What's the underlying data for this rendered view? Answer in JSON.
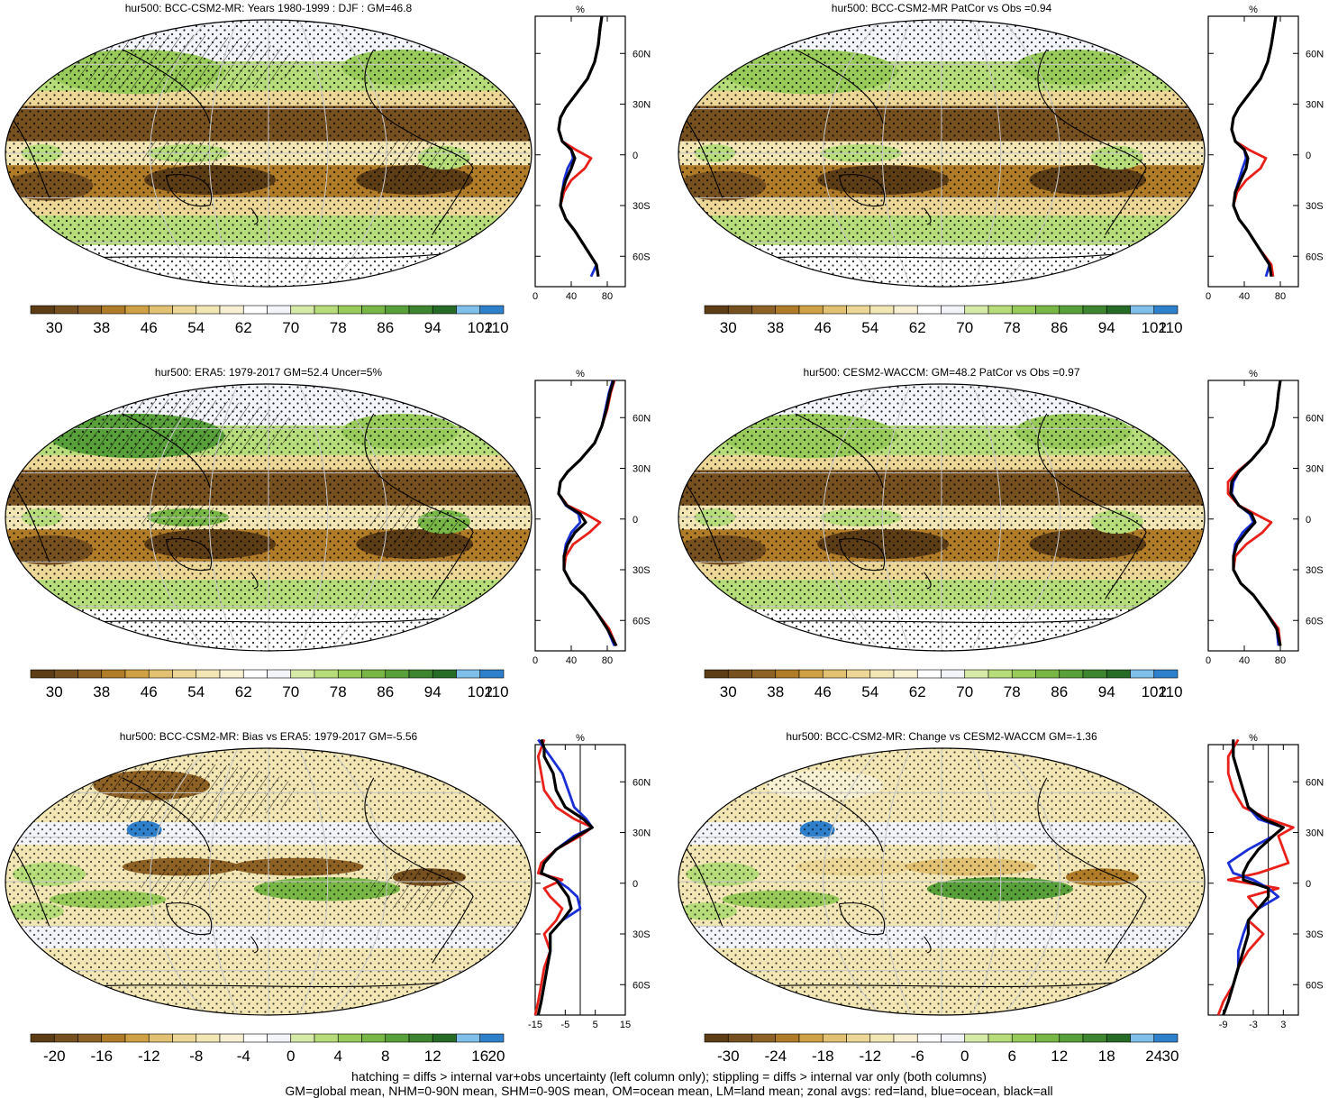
{
  "footer": {
    "line1": "hatching = diffs > internal var+obs uncertainty (left column only); stippling = diffs > internal var only (both columns)",
    "line2": "GM=global mean, NHM=0-90N mean, SHM=0-90S mean, OM=ocean mean, LM=land mean; zonal avgs: red=land, blue=ocean, black=all"
  },
  "colors": {
    "land": "#e8201a",
    "ocean": "#1a2fd6",
    "all": "#000000",
    "abs_scale": [
      "#5c3d16",
      "#77501f",
      "#8e6225",
      "#b07c28",
      "#cfa044",
      "#e2c272",
      "#ecd796",
      "#f2e6b4",
      "#f7f0d2",
      "#ffffff",
      "#f2f4fa",
      "#d6eba8",
      "#b7dc7a",
      "#98cb5a",
      "#78b746",
      "#58a03a",
      "#3d862f",
      "#266b26",
      "#7fc0ea",
      "#2e80cc"
    ],
    "bias_scale": [
      "#5c3d16",
      "#77501f",
      "#8e6225",
      "#b07c28",
      "#cfa044",
      "#e2c272",
      "#ecd796",
      "#f2e6b4",
      "#f7f0d2",
      "#ffffff",
      "#f2f4fa",
      "#d6eba8",
      "#b7dc7a",
      "#98cb5a",
      "#78b746",
      "#58a03a",
      "#3d862f",
      "#266b26",
      "#7fc0ea",
      "#2e80cc"
    ]
  },
  "panels": [
    {
      "id": "p1",
      "title": "hur500: BCC-CSM2-MR: Years 1980-1999 : DJF : GM=46.8",
      "type": "abs",
      "hatch": true,
      "stipple": true
    },
    {
      "id": "p2",
      "title": "hur500: BCC-CSM2-MR PatCor vs Obs =0.94",
      "type": "abs",
      "hatch": false,
      "stipple": true
    },
    {
      "id": "p3",
      "title": "hur500: ERA5: 1979-2017 GM=52.4 Uncer=5%",
      "type": "abs",
      "hatch": true,
      "stipple": true
    },
    {
      "id": "p4",
      "title": "hur500: CESM2-WACCM: GM=48.2 PatCor vs Obs =0.97",
      "type": "abs",
      "hatch": false,
      "stipple": true
    },
    {
      "id": "p5",
      "title": "hur500: BCC-CSM2-MR: Bias vs ERA5: 1979-2017 GM=-5.56",
      "type": "bias",
      "hatch": true,
      "stipple": true
    },
    {
      "id": "p6",
      "title": "hur500: BCC-CSM2-MR: Change vs CESM2-WACCM GM=-1.36",
      "type": "chg",
      "hatch": false,
      "stipple": true
    }
  ],
  "colorbars": [
    {
      "id": "cb1",
      "labels": [
        "30",
        "38",
        "46",
        "54",
        "62",
        "70",
        "78",
        "86",
        "94",
        "102",
        "110"
      ]
    },
    {
      "id": "cb2",
      "labels": [
        "30",
        "38",
        "46",
        "54",
        "62",
        "70",
        "78",
        "86",
        "94",
        "102",
        "110"
      ]
    },
    {
      "id": "cb3",
      "labels": [
        "30",
        "38",
        "46",
        "54",
        "62",
        "70",
        "78",
        "86",
        "94",
        "102",
        "110"
      ]
    },
    {
      "id": "cb4",
      "labels": [
        "30",
        "38",
        "46",
        "54",
        "62",
        "70",
        "78",
        "86",
        "94",
        "102",
        "110"
      ]
    },
    {
      "id": "cb5",
      "labels": [
        "-20",
        "-16",
        "-12",
        "-8",
        "-4",
        "0",
        "4",
        "8",
        "12",
        "16",
        "20"
      ]
    },
    {
      "id": "cb6",
      "labels": [
        "-30",
        "-24",
        "-18",
        "-12",
        "-6",
        "0",
        "6",
        "12",
        "18",
        "24",
        "30"
      ]
    }
  ],
  "chart_data": [
    {
      "id": "z1",
      "type": "line",
      "title": "%",
      "lat_labels": [
        "60N",
        "30N",
        "0",
        "30S",
        "60S"
      ],
      "lat_values": [
        60,
        30,
        0,
        -30,
        -60
      ],
      "xlim": [
        0,
        100
      ],
      "x_ticks": [
        0,
        40,
        80
      ],
      "lat": [
        82,
        75,
        65,
        55,
        45,
        35,
        28,
        22,
        15,
        8,
        3,
        -2,
        -8,
        -15,
        -22,
        -30,
        -38,
        -45,
        -55,
        -65,
        -72
      ],
      "series": [
        {
          "name": "land",
          "values": [
            74,
            72,
            70,
            66,
            58,
            44,
            34,
            28,
            26,
            30,
            45,
            62,
            55,
            40,
            32,
            28,
            34,
            44,
            56,
            68,
            70
          ]
        },
        {
          "name": "ocean",
          "values": [
            74,
            72,
            70,
            66,
            58,
            44,
            34,
            28,
            26,
            30,
            40,
            42,
            36,
            32,
            30,
            28,
            34,
            44,
            56,
            68,
            62
          ]
        },
        {
          "name": "all",
          "values": [
            74,
            72,
            70,
            66,
            58,
            44,
            34,
            28,
            26,
            30,
            40,
            44,
            40,
            34,
            30,
            28,
            34,
            44,
            56,
            68,
            70
          ]
        }
      ]
    },
    {
      "id": "z2",
      "type": "line",
      "title": "%",
      "lat_labels": [
        "60N",
        "30N",
        "0",
        "30S",
        "60S"
      ],
      "lat_values": [
        60,
        30,
        0,
        -30,
        -60
      ],
      "xlim": [
        0,
        100
      ],
      "x_ticks": [
        0,
        40,
        80
      ],
      "lat": [
        82,
        75,
        65,
        55,
        45,
        35,
        28,
        22,
        15,
        8,
        3,
        -2,
        -8,
        -15,
        -22,
        -30,
        -38,
        -45,
        -55,
        -65,
        -72
      ],
      "series": [
        {
          "name": "land",
          "values": [
            75,
            73,
            70,
            66,
            58,
            44,
            34,
            28,
            26,
            30,
            45,
            64,
            58,
            42,
            32,
            28,
            34,
            44,
            56,
            70,
            72
          ]
        },
        {
          "name": "ocean",
          "values": [
            75,
            73,
            70,
            66,
            58,
            44,
            34,
            28,
            26,
            30,
            40,
            42,
            38,
            34,
            30,
            28,
            34,
            44,
            56,
            68,
            64
          ]
        },
        {
          "name": "all",
          "values": [
            75,
            73,
            70,
            66,
            58,
            44,
            34,
            28,
            26,
            30,
            40,
            44,
            42,
            36,
            30,
            28,
            34,
            44,
            56,
            68,
            70
          ]
        }
      ]
    },
    {
      "id": "z3",
      "type": "line",
      "title": "%",
      "lat_labels": [
        "60N",
        "30N",
        "0",
        "30S",
        "60S"
      ],
      "lat_values": [
        60,
        30,
        0,
        -30,
        -60
      ],
      "xlim": [
        0,
        100
      ],
      "x_ticks": [
        0,
        40,
        80
      ],
      "lat": [
        82,
        75,
        65,
        55,
        45,
        35,
        28,
        22,
        15,
        8,
        3,
        -2,
        -8,
        -15,
        -22,
        -30,
        -38,
        -45,
        -55,
        -65,
        -75
      ],
      "series": [
        {
          "name": "land",
          "values": [
            88,
            84,
            80,
            74,
            66,
            50,
            36,
            28,
            26,
            36,
            56,
            72,
            60,
            42,
            34,
            32,
            40,
            54,
            68,
            82,
            90
          ]
        },
        {
          "name": "ocean",
          "values": [
            86,
            82,
            78,
            74,
            66,
            50,
            36,
            28,
            26,
            34,
            48,
            50,
            40,
            34,
            32,
            32,
            40,
            54,
            68,
            80,
            88
          ]
        },
        {
          "name": "all",
          "values": [
            87,
            83,
            79,
            74,
            66,
            50,
            36,
            28,
            26,
            35,
            50,
            56,
            44,
            36,
            32,
            32,
            40,
            54,
            68,
            80,
            90
          ]
        }
      ]
    },
    {
      "id": "z4",
      "type": "line",
      "title": "%",
      "lat_labels": [
        "60N",
        "30N",
        "0",
        "30S",
        "60S"
      ],
      "lat_values": [
        60,
        30,
        0,
        -30,
        -60
      ],
      "xlim": [
        0,
        100
      ],
      "x_ticks": [
        0,
        40,
        80
      ],
      "lat": [
        82,
        75,
        65,
        55,
        45,
        35,
        28,
        22,
        15,
        8,
        3,
        -2,
        -8,
        -15,
        -22,
        -30,
        -38,
        -45,
        -55,
        -65,
        -75
      ],
      "series": [
        {
          "name": "land",
          "values": [
            80,
            78,
            76,
            72,
            64,
            48,
            32,
            22,
            22,
            34,
            52,
            70,
            60,
            42,
            30,
            28,
            36,
            50,
            64,
            78,
            80
          ]
        },
        {
          "name": "ocean",
          "values": [
            80,
            78,
            76,
            72,
            64,
            48,
            34,
            28,
            26,
            34,
            46,
            50,
            38,
            30,
            28,
            28,
            36,
            50,
            64,
            76,
            78
          ]
        },
        {
          "name": "all",
          "values": [
            80,
            78,
            76,
            72,
            64,
            48,
            34,
            26,
            25,
            34,
            48,
            52,
            42,
            32,
            28,
            28,
            36,
            50,
            64,
            76,
            80
          ]
        }
      ]
    },
    {
      "id": "z5",
      "type": "line",
      "title": "%",
      "lat_labels": [
        "60N",
        "30N",
        "0",
        "30S",
        "60S"
      ],
      "lat_values": [
        60,
        30,
        0,
        -30,
        -60
      ],
      "xlim": [
        -15,
        15
      ],
      "x_ticks": [
        -15,
        -5,
        5,
        15
      ],
      "lat": [
        85,
        80,
        75,
        65,
        55,
        45,
        38,
        33,
        28,
        20,
        12,
        6,
        2,
        -3,
        -8,
        -15,
        -22,
        -30,
        -40,
        -50,
        -60,
        -70,
        -78
      ],
      "series": [
        {
          "name": "land",
          "values": [
            -12,
            -13,
            -14,
            -13,
            -12,
            -8,
            -2,
            4,
            0,
            -8,
            -13,
            -14,
            -6,
            -12,
            -10,
            -6,
            -8,
            -12,
            -10,
            -12,
            -13,
            -14,
            -15
          ]
        },
        {
          "name": "ocean",
          "values": [
            -14,
            -12,
            -10,
            -6,
            -4,
            -2,
            2,
            4,
            -2,
            -8,
            -12,
            -13,
            -8,
            -4,
            -1,
            0,
            -6,
            -10,
            -10,
            -11,
            -12,
            -13,
            -14
          ]
        },
        {
          "name": "all",
          "values": [
            -13,
            -12,
            -12,
            -9,
            -8,
            -5,
            1,
            4,
            -1,
            -8,
            -12,
            -13,
            -8,
            -6,
            -4,
            -3,
            -6,
            -10,
            -10,
            -11,
            -12,
            -13,
            -14
          ]
        }
      ]
    },
    {
      "id": "z6",
      "type": "line",
      "title": "%",
      "lat_labels": [
        "60N",
        "30N",
        "0",
        "30S",
        "60S"
      ],
      "lat_values": [
        60,
        30,
        0,
        -30,
        -60
      ],
      "xlim": [
        -12,
        6
      ],
      "x_ticks": [
        -9,
        -3,
        3
      ],
      "lat": [
        85,
        80,
        75,
        65,
        55,
        45,
        38,
        33,
        28,
        20,
        12,
        6,
        2,
        -3,
        -8,
        -15,
        -22,
        -30,
        -40,
        -50,
        -60,
        -70,
        -78
      ],
      "series": [
        {
          "name": "land",
          "values": [
            -6,
            -7,
            -8,
            -8,
            -7,
            -5,
            0,
            5,
            2,
            3,
            4,
            -2,
            -8,
            2,
            -4,
            -2,
            -4,
            -1,
            -4,
            -6,
            -7,
            -9,
            -10
          ]
        },
        {
          "name": "ocean",
          "values": [
            -7,
            -7,
            -7,
            -6,
            -5,
            -4,
            -2,
            3,
            1,
            -4,
            -8,
            -7,
            -3,
            0,
            2,
            -2,
            -4,
            -5,
            -6,
            -6,
            -7,
            -8,
            -9
          ]
        },
        {
          "name": "all",
          "values": [
            -7,
            -7,
            -7,
            -6,
            -5,
            -4,
            -1,
            3,
            1,
            -2,
            -4,
            -5,
            -5,
            0,
            0,
            -2,
            -4,
            -4,
            -5,
            -6,
            -7,
            -8,
            -9
          ]
        }
      ]
    }
  ]
}
